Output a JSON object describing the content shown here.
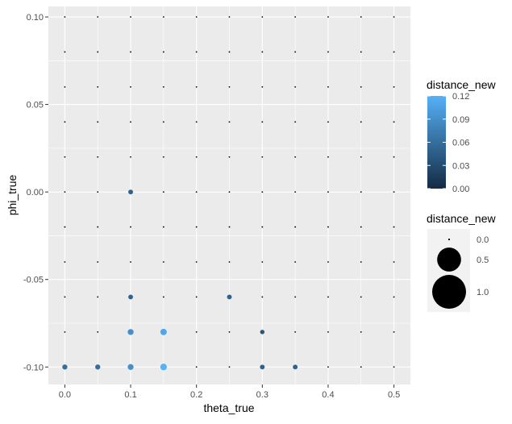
{
  "chart_data": {
    "type": "scatter",
    "xlabel": "theta_true",
    "ylabel": "phi_true",
    "xlim": [
      -0.025,
      0.525
    ],
    "ylim": [
      -0.11,
      0.106
    ],
    "x_ticks": [
      0.0,
      0.1,
      0.2,
      0.3,
      0.4,
      0.5
    ],
    "x_tick_labels": [
      "0.0",
      "0.1",
      "0.2",
      "0.3",
      "0.4",
      "0.5"
    ],
    "y_ticks": [
      -0.1,
      -0.05,
      0.0,
      0.05,
      0.1
    ],
    "y_tick_labels": [
      "-0.10",
      "-0.05",
      "0.00",
      "0.05",
      "0.10"
    ],
    "grid": true,
    "background": "#EBEBEB",
    "grid_color": "#FFFFFF",
    "x_values": [
      0.0,
      0.05,
      0.1,
      0.15,
      0.2,
      0.25,
      0.3,
      0.35,
      0.4,
      0.45,
      0.5
    ],
    "y_values": [
      -0.1,
      -0.08,
      -0.06,
      -0.04,
      -0.02,
      0.0,
      0.02,
      0.04,
      0.06,
      0.08,
      0.1
    ],
    "points": [
      {
        "x": 0.0,
        "y": -0.1,
        "distance_new": 0.06
      },
      {
        "x": 0.05,
        "y": -0.1,
        "distance_new": 0.06
      },
      {
        "x": 0.1,
        "y": -0.1,
        "distance_new": 0.09
      },
      {
        "x": 0.15,
        "y": -0.1,
        "distance_new": 0.12
      },
      {
        "x": 0.3,
        "y": -0.1,
        "distance_new": 0.05
      },
      {
        "x": 0.35,
        "y": -0.1,
        "distance_new": 0.05
      },
      {
        "x": 0.1,
        "y": -0.08,
        "distance_new": 0.09
      },
      {
        "x": 0.15,
        "y": -0.08,
        "distance_new": 0.11
      },
      {
        "x": 0.3,
        "y": -0.08,
        "distance_new": 0.04
      },
      {
        "x": 0.1,
        "y": -0.06,
        "distance_new": 0.05
      },
      {
        "x": 0.25,
        "y": -0.06,
        "distance_new": 0.05
      },
      {
        "x": 0.1,
        "y": 0.0,
        "distance_new": 0.05
      }
    ],
    "default_point": {
      "distance_new": 0.0
    },
    "legend_color": {
      "title": "distance_new",
      "ticks": [
        0.0,
        0.03,
        0.06,
        0.09,
        0.12
      ],
      "tick_labels": [
        "0.00",
        "0.03",
        "0.06",
        "0.09",
        "0.12"
      ],
      "low_color": "#132B43",
      "high_color": "#56B1F7"
    },
    "legend_size": {
      "title": "distance_new",
      "values": [
        0.0,
        0.5,
        1.0
      ],
      "labels": [
        "0.0",
        "0.5",
        "1.0"
      ],
      "max_value": 1.0
    }
  }
}
